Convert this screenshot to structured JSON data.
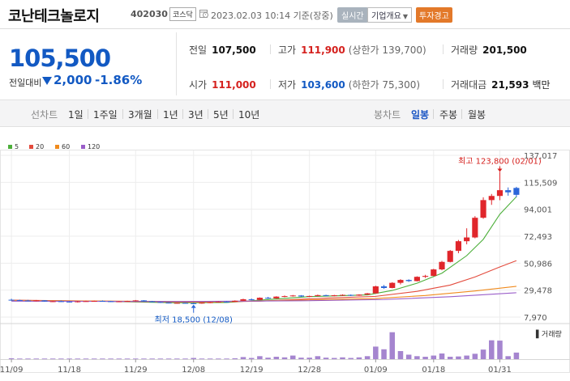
{
  "header": {
    "stock_name": "코난테크놀로지",
    "stock_code": "402030",
    "market": "코스닥",
    "timestamp": "2023.02.03 10:14 기준(장중)",
    "realtime_button": "실시간",
    "company_button": "기업개요",
    "warning_badge": "투자경고",
    "colors": {
      "warning": "#e3792a",
      "realtime": "#a9b3bd"
    }
  },
  "summary": {
    "price": "105,500",
    "change_label": "전일대비",
    "change_value": "2,000",
    "change_percent": "-1.86%",
    "direction": "down",
    "stats": {
      "prev_close": {
        "label": "전일",
        "value": "107,500"
      },
      "high": {
        "label": "고가",
        "value": "111,900",
        "sub": "(상한가 139,700)"
      },
      "volume": {
        "label": "거래량",
        "value": "201,500"
      },
      "open": {
        "label": "시가",
        "value": "111,000"
      },
      "low": {
        "label": "저가",
        "value": "103,600",
        "sub": "(하한가 75,300)"
      },
      "amount": {
        "label": "거래대금",
        "value": "21,593",
        "unit": "백만"
      }
    }
  },
  "tabs": {
    "line_label": "선차트",
    "periods": [
      "1일",
      "1주일",
      "3개월",
      "1년",
      "3년",
      "5년",
      "10년"
    ],
    "candle_label": "봉차트",
    "candles": [
      "일봉",
      "주봉",
      "월봉"
    ],
    "active_candle": "일봉"
  },
  "chart_data": {
    "type": "candlestick",
    "legend": [
      {
        "name": "5",
        "color": "#4caf3a"
      },
      {
        "name": "20",
        "color": "#e34a3c"
      },
      {
        "name": "60",
        "color": "#f08a1c"
      },
      {
        "name": "120",
        "color": "#9a5ec9"
      }
    ],
    "y_ticks": [
      "137,017",
      "115,509",
      "94,001",
      "72,493",
      "50,986",
      "29,478",
      "7,970"
    ],
    "y_range": [
      7970,
      137017
    ],
    "x_ticks": [
      "11/09",
      "11/18",
      "11/29",
      "12/08",
      "12/19",
      "12/28",
      "01/09",
      "01/18",
      "01/31"
    ],
    "x_tick_index": [
      0,
      7,
      15,
      22,
      29,
      36,
      44,
      51,
      59
    ],
    "annotation_high": "최고 123,800 (02/01)",
    "annotation_low": "최저 18,500 (12/08)",
    "volume_label": "거래량",
    "candles": [
      [
        21800,
        22600,
        21000,
        21500
      ],
      [
        21500,
        21900,
        20900,
        21200
      ],
      [
        21200,
        21700,
        20600,
        20900
      ],
      [
        20900,
        21600,
        20500,
        21300
      ],
      [
        21300,
        21500,
        20200,
        20400
      ],
      [
        20400,
        20900,
        20000,
        20600
      ],
      [
        20600,
        21200,
        20100,
        20300
      ],
      [
        20300,
        20600,
        19700,
        19900
      ],
      [
        19900,
        20800,
        19600,
        20500
      ],
      [
        20500,
        21100,
        20200,
        20700
      ],
      [
        20700,
        21200,
        20300,
        20900
      ],
      [
        20900,
        21300,
        20400,
        20600
      ],
      [
        20600,
        20900,
        20000,
        20200
      ],
      [
        20200,
        20800,
        19900,
        20500
      ],
      [
        20500,
        21000,
        20200,
        20800
      ],
      [
        20800,
        21600,
        20400,
        21300
      ],
      [
        21300,
        21500,
        20300,
        20500
      ],
      [
        20500,
        20900,
        19800,
        20000
      ],
      [
        20000,
        20300,
        19200,
        19500
      ],
      [
        19500,
        19900,
        18900,
        19100
      ],
      [
        19100,
        19600,
        18700,
        19300
      ],
      [
        19300,
        19700,
        18800,
        19000
      ],
      [
        19000,
        19300,
        18500,
        18800
      ],
      [
        18800,
        19600,
        18600,
        19400
      ],
      [
        19400,
        20100,
        19100,
        19800
      ],
      [
        19800,
        20500,
        19500,
        20300
      ],
      [
        20300,
        20700,
        19900,
        20100
      ],
      [
        20100,
        21300,
        20000,
        21000
      ],
      [
        21000,
        22600,
        20800,
        22200
      ],
      [
        22200,
        22800,
        21300,
        21700
      ],
      [
        21700,
        23700,
        21500,
        23400
      ],
      [
        23400,
        24100,
        22600,
        22900
      ],
      [
        22900,
        24600,
        22700,
        24300
      ],
      [
        24300,
        25200,
        23800,
        24700
      ],
      [
        24700,
        25600,
        24300,
        25200
      ],
      [
        25200,
        25500,
        24000,
        24400
      ],
      [
        24400,
        25100,
        23900,
        24800
      ],
      [
        24800,
        25900,
        24500,
        25500
      ],
      [
        25500,
        25800,
        24600,
        24900
      ],
      [
        24900,
        25700,
        24500,
        25400
      ],
      [
        25400,
        26100,
        24900,
        25700
      ],
      [
        25700,
        26000,
        24800,
        25100
      ],
      [
        25100,
        26200,
        24900,
        25900
      ],
      [
        25900,
        27200,
        25700,
        26900
      ],
      [
        26900,
        33000,
        26700,
        32500
      ],
      [
        32500,
        33600,
        30500,
        31200
      ],
      [
        31200,
        35800,
        30900,
        35300
      ],
      [
        35300,
        38200,
        34000,
        37600
      ],
      [
        37600,
        38100,
        36000,
        36700
      ],
      [
        36700,
        40500,
        36400,
        40100
      ],
      [
        40100,
        41700,
        39200,
        40800
      ],
      [
        40800,
        46500,
        40600,
        46000
      ],
      [
        46000,
        52800,
        45300,
        52000
      ],
      [
        52000,
        61500,
        51600,
        60800
      ],
      [
        60800,
        69500,
        58900,
        68500
      ],
      [
        68500,
        78800,
        66000,
        71500
      ],
      [
        71500,
        88500,
        70800,
        87200
      ],
      [
        87200,
        103500,
        86400,
        101300
      ],
      [
        101300,
        106200,
        97500,
        104600
      ],
      [
        104600,
        123800,
        101200,
        109200
      ],
      [
        109200,
        111400,
        104800,
        107500
      ],
      [
        111000,
        111900,
        103600,
        105500
      ]
    ],
    "volume_rel": [
      0.03,
      0.02,
      0.02,
      0.02,
      0.02,
      0.02,
      0.02,
      0.02,
      0.02,
      0.02,
      0.02,
      0.02,
      0.02,
      0.02,
      0.02,
      0.02,
      0.02,
      0.02,
      0.02,
      0.02,
      0.02,
      0.02,
      0.04,
      0.02,
      0.02,
      0.02,
      0.02,
      0.03,
      0.07,
      0.04,
      0.1,
      0.05,
      0.08,
      0.06,
      0.12,
      0.05,
      0.05,
      0.1,
      0.05,
      0.04,
      0.06,
      0.04,
      0.06,
      0.1,
      0.42,
      0.33,
      0.9,
      0.27,
      0.15,
      0.1,
      0.08,
      0.12,
      0.19,
      0.08,
      0.09,
      0.12,
      0.18,
      0.32,
      0.63,
      0.62,
      0.1,
      0.22
    ],
    "ma": {
      "5": [
        [
          0,
          21300
        ],
        [
          10,
          20700
        ],
        [
          20,
          19400
        ],
        [
          26,
          19600
        ],
        [
          30,
          21500
        ],
        [
          36,
          24300
        ],
        [
          43,
          25700
        ],
        [
          46,
          29200
        ],
        [
          49,
          35000
        ],
        [
          52,
          43000
        ],
        [
          55,
          57000
        ],
        [
          57,
          70000
        ],
        [
          59,
          90000
        ],
        [
          61,
          104000
        ]
      ],
      "20": [
        [
          0,
          21500
        ],
        [
          12,
          20600
        ],
        [
          22,
          19900
        ],
        [
          30,
          20700
        ],
        [
          38,
          23100
        ],
        [
          44,
          24500
        ],
        [
          49,
          28500
        ],
        [
          53,
          33500
        ],
        [
          56,
          40000
        ],
        [
          59,
          48000
        ],
        [
          61,
          53000
        ]
      ],
      "60": [
        [
          0,
          21100
        ],
        [
          15,
          20600
        ],
        [
          25,
          20300
        ],
        [
          35,
          21500
        ],
        [
          44,
          22800
        ],
        [
          50,
          25200
        ],
        [
          56,
          28800
        ],
        [
          61,
          32500
        ]
      ],
      "120": [
        [
          0,
          20700
        ],
        [
          20,
          20400
        ],
        [
          35,
          21000
        ],
        [
          45,
          22000
        ],
        [
          53,
          24200
        ],
        [
          61,
          27400
        ]
      ]
    }
  }
}
